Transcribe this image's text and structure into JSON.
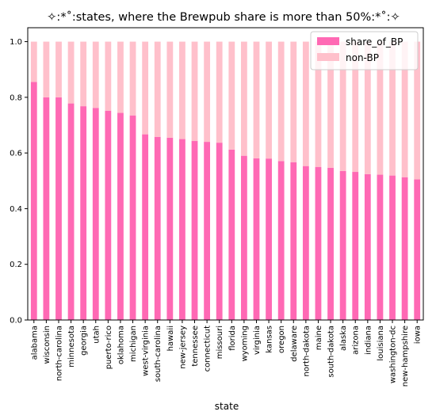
{
  "chart_data": {
    "type": "bar",
    "stacked": true,
    "title": "✧:*˚:states, where the Brewpub share is more than 50%:*˚:✧",
    "xlabel": "state",
    "ylabel": "",
    "ylim": [
      0,
      1.05
    ],
    "yticks": [
      "0.0",
      "0.2",
      "0.4",
      "0.6",
      "0.8",
      "1.0"
    ],
    "legend_position": "top-right",
    "grid": false,
    "categories": [
      "alabama",
      "wisconsin",
      "north-carolina",
      "minnesota",
      "georgia",
      "utah",
      "puerto-rico",
      "oklahoma",
      "michigan",
      "west-virginia",
      "south-carolina",
      "hawaii",
      "new-jersey",
      "tennessee",
      "connecticut",
      "missouri",
      "florida",
      "wyoming",
      "virginia",
      "kansas",
      "oregon",
      "delaware",
      "north-dakota",
      "maine",
      "south-dakota",
      "alaska",
      "arizona",
      "indiana",
      "louisiana",
      "washington-dc",
      "new-hampshire",
      "iowa"
    ],
    "series": [
      {
        "name": "share_of_BP",
        "color": "#ff69b4",
        "values": [
          0.855,
          0.8,
          0.8,
          0.778,
          0.768,
          0.762,
          0.752,
          0.744,
          0.735,
          0.667,
          0.658,
          0.655,
          0.65,
          0.643,
          0.64,
          0.637,
          0.612,
          0.59,
          0.581,
          0.58,
          0.571,
          0.567,
          0.553,
          0.55,
          0.547,
          0.535,
          0.532,
          0.524,
          0.522,
          0.519,
          0.513,
          0.505
        ]
      },
      {
        "name": "non-BP",
        "color": "#ffc0cb",
        "values": [
          0.145,
          0.2,
          0.2,
          0.222,
          0.232,
          0.238,
          0.248,
          0.256,
          0.265,
          0.333,
          0.342,
          0.345,
          0.35,
          0.357,
          0.36,
          0.363,
          0.388,
          0.41,
          0.419,
          0.42,
          0.429,
          0.433,
          0.447,
          0.45,
          0.453,
          0.465,
          0.468,
          0.476,
          0.478,
          0.481,
          0.487,
          0.495
        ]
      }
    ]
  }
}
